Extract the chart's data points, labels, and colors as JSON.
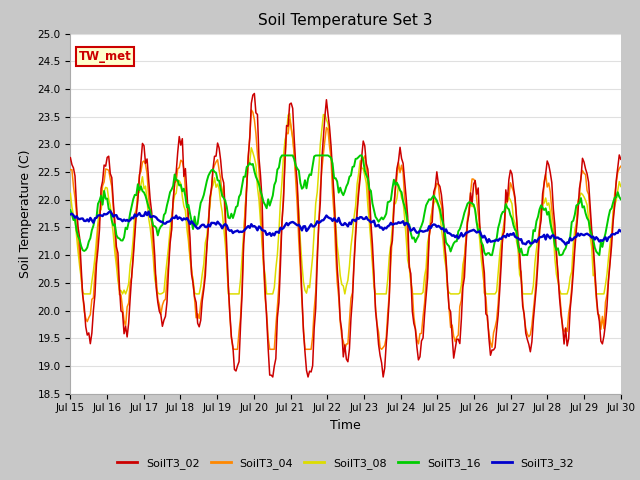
{
  "title": "Soil Temperature Set 3",
  "xlabel": "Time",
  "ylabel": "Soil Temperature (C)",
  "ylim": [
    18.5,
    25.0
  ],
  "yticks": [
    18.5,
    19.0,
    19.5,
    20.0,
    20.5,
    21.0,
    21.5,
    22.0,
    22.5,
    23.0,
    23.5,
    24.0,
    24.5,
    25.0
  ],
  "xtick_labels": [
    "Jul 15",
    "Jul 16",
    "Jul 17",
    "Jul 18",
    "Jul 19",
    "Jul 20",
    "Jul 21",
    "Jul 22",
    "Jul 23",
    "Jul 24",
    "Jul 25",
    "Jul 26",
    "Jul 27",
    "Jul 28",
    "Jul 29",
    "Jul 30"
  ],
  "annotation_text": "TW_met",
  "annotation_bg": "#ffffcc",
  "annotation_border": "#cc0000",
  "colors": {
    "SoilT3_02": "#cc0000",
    "SoilT3_04": "#ff8800",
    "SoilT3_08": "#dddd00",
    "SoilT3_16": "#00cc00",
    "SoilT3_32": "#0000cc"
  },
  "fig_bg": "#c8c8c8",
  "plot_bg": "#ffffff",
  "grid_color": "#e0e0e0"
}
